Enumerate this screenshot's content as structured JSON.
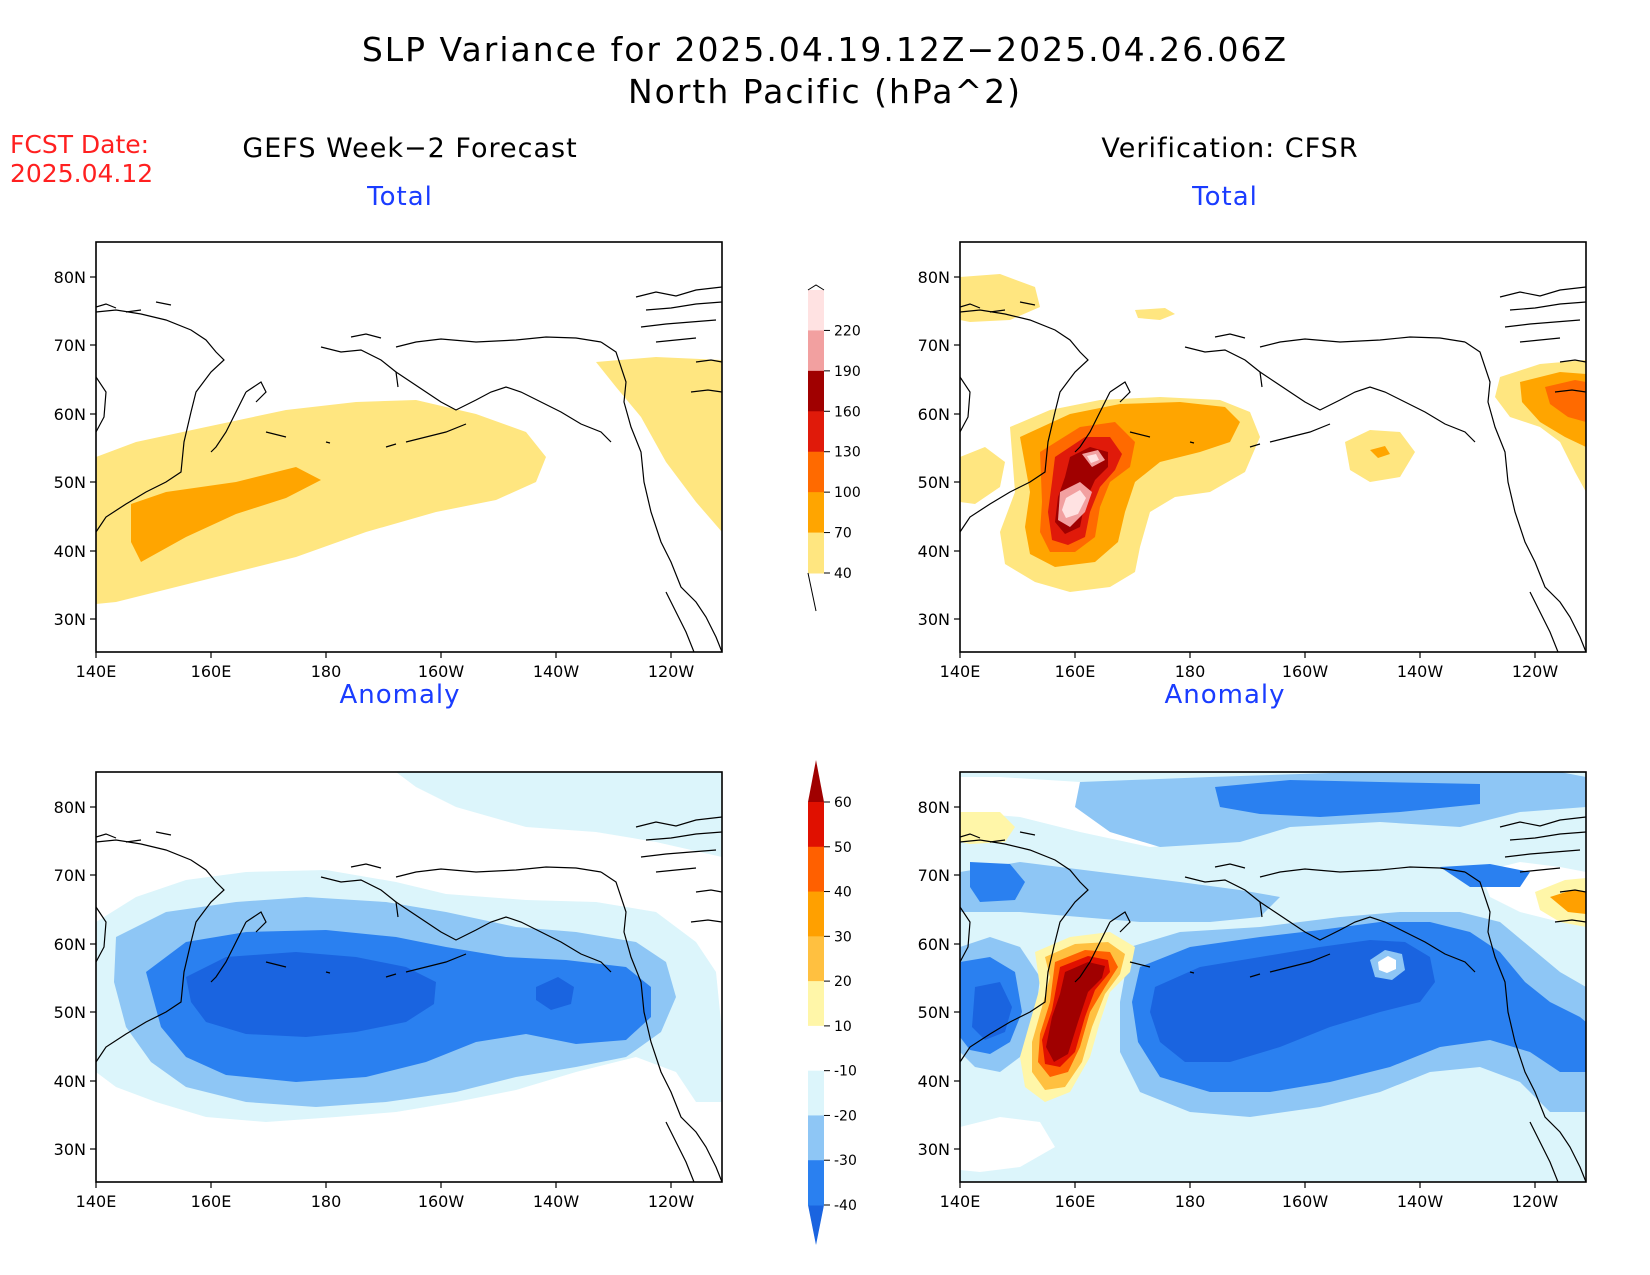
{
  "title": {
    "line1": "SLP Variance for 2025.04.19.12Z−2025.04.26.06Z",
    "line2": "North Pacific (hPa^2)"
  },
  "fcst": {
    "label": "FCST Date:",
    "date": "2025.04.12"
  },
  "columns": {
    "left": "GEFS Week−2 Forecast",
    "right": "Verification: CFSR"
  },
  "panels": {
    "top_left": {
      "subtitle": "Total"
    },
    "top_right": {
      "subtitle": "Total"
    },
    "bottom_left": {
      "subtitle": "Anomaly"
    },
    "bottom_right": {
      "subtitle": "Anomaly"
    }
  },
  "axes": {
    "lat_labels": [
      "80N",
      "70N",
      "60N",
      "50N",
      "40N",
      "30N"
    ],
    "lon_labels": [
      "140E",
      "160E",
      "180",
      "160W",
      "140W",
      "120W"
    ]
  },
  "colorbars": {
    "total": {
      "levels": [
        "40",
        "70",
        "100",
        "130",
        "160",
        "190",
        "220"
      ],
      "colors": [
        "#ffe680",
        "#ffa500",
        "#ff6a00",
        "#e01a0a",
        "#a00000",
        "#f2a0a0",
        "#ffe2e2"
      ]
    },
    "anomaly": {
      "levels": [
        "-40",
        "-30",
        "-20",
        "-10",
        "10",
        "20",
        "30",
        "40",
        "50",
        "60"
      ],
      "colors": [
        "#1a64e0",
        "#2a80f0",
        "#8ec6f5",
        "#dcf5fb",
        "#ffffff",
        "#fff6a8",
        "#ffc040",
        "#ffa000",
        "#ff6000",
        "#e01000",
        "#a00000"
      ]
    }
  }
}
